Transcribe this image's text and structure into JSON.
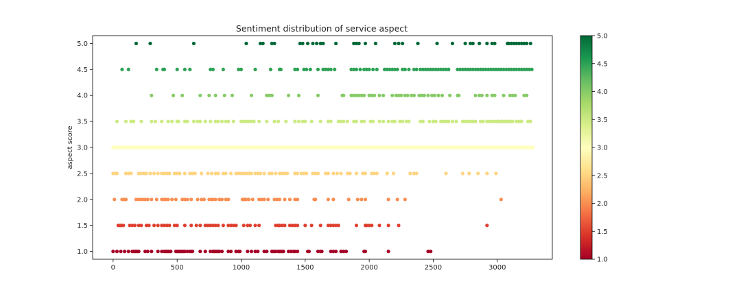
{
  "chart_data": {
    "type": "scatter",
    "title": "Sentiment distribution of service aspect",
    "xlabel": "",
    "ylabel": "aspect score",
    "xlim": [
      -160,
      3430
    ],
    "ylim": [
      0.85,
      5.15
    ],
    "xticks": [
      0,
      500,
      1000,
      1500,
      2000,
      2500,
      3000
    ],
    "xtick_labels": [
      "0",
      "500",
      "1000",
      "1500",
      "2000",
      "2500",
      "3000"
    ],
    "yticks": [
      1.0,
      1.5,
      2.0,
      2.5,
      3.0,
      3.5,
      4.0,
      4.5,
      5.0
    ],
    "ytick_labels": [
      "1.0",
      "1.5",
      "2.0",
      "2.5",
      "3.0",
      "3.5",
      "4.0",
      "4.5",
      "5.0"
    ],
    "grid": false,
    "colormap": "RdYlGn",
    "colormap_stops": [
      "#a50026",
      "#d73027",
      "#f46d43",
      "#fdae61",
      "#fee08b",
      "#ffffbf",
      "#d9ef8b",
      "#a6d96a",
      "#66bd63",
      "#1a9850",
      "#006837"
    ],
    "colorbar": {
      "range": [
        1.0,
        5.0
      ],
      "ticks": [
        1.0,
        1.5,
        2.0,
        2.5,
        3.0,
        3.5,
        4.0,
        4.5,
        5.0
      ],
      "tick_labels": [
        "1.0",
        "1.5",
        "2.0",
        "2.5",
        "3.0",
        "3.5",
        "4.0",
        "4.5",
        "5.0"
      ],
      "position": "right"
    },
    "series": [
      {
        "y": 1.0,
        "x": [
          0,
          30,
          60,
          90,
          120,
          150,
          160,
          170,
          180,
          190,
          200,
          250,
          270,
          300,
          350,
          380,
          400,
          410,
          420,
          430,
          440,
          450,
          490,
          500,
          510,
          520,
          530,
          540,
          550,
          560,
          580,
          600,
          610,
          620,
          680,
          720,
          760,
          780,
          790,
          800,
          810,
          820,
          830,
          850,
          900,
          920,
          960,
          980,
          990,
          1050,
          1080,
          1110,
          1130,
          1180,
          1200,
          1240,
          1250,
          1260,
          1270,
          1290,
          1300,
          1310,
          1320,
          1330,
          1370,
          1390,
          1410,
          1420,
          1440,
          1520,
          1530,
          1600,
          1620,
          1630,
          1700,
          1720,
          1740,
          1780,
          1800,
          1820,
          1960,
          1970,
          2150,
          2460,
          2480
        ]
      },
      {
        "y": 1.5,
        "x": [
          40,
          55,
          65,
          80,
          130,
          150,
          170,
          200,
          220,
          260,
          280,
          320,
          350,
          380,
          400,
          420,
          440,
          480,
          500,
          560,
          610,
          650,
          680,
          720,
          740,
          760,
          780,
          800,
          820,
          860,
          900,
          920,
          940,
          960,
          1020,
          1050,
          1070,
          1110,
          1140,
          1270,
          1290,
          1300,
          1320,
          1340,
          1380,
          1400,
          1420,
          1440,
          1500,
          1550,
          1620,
          1680,
          1700,
          1720,
          1740,
          1760,
          1900,
          1970,
          1980,
          2000,
          2020,
          2080,
          2150,
          2230,
          2920
        ]
      },
      {
        "y": 2.0,
        "x": [
          10,
          70,
          90,
          100,
          180,
          200,
          220,
          230,
          250,
          270,
          300,
          340,
          380,
          400,
          410,
          430,
          460,
          490,
          540,
          560,
          580,
          610,
          660,
          690,
          710,
          750,
          770,
          780,
          800,
          830,
          850,
          880,
          900,
          1010,
          1020,
          1030,
          1040,
          1060,
          1090,
          1140,
          1160,
          1180,
          1210,
          1260,
          1280,
          1300,
          1340,
          1380,
          1420,
          1440,
          1570,
          1580,
          1680,
          1720,
          1840,
          1910,
          1940,
          1970,
          2150,
          2220,
          2280,
          3030
        ]
      },
      {
        "y": 2.5,
        "x": [
          0,
          20,
          30,
          100,
          120,
          140,
          200,
          220,
          240,
          260,
          290,
          320,
          350,
          380,
          400,
          420,
          440,
          480,
          500,
          520,
          560,
          600,
          620,
          640,
          690,
          740,
          770,
          800,
          820,
          860,
          880,
          920,
          960,
          980,
          1000,
          1020,
          1040,
          1060,
          1080,
          1110,
          1130,
          1150,
          1180,
          1220,
          1240,
          1270,
          1300,
          1320,
          1340,
          1360,
          1420,
          1440,
          1470,
          1490,
          1510,
          1560,
          1580,
          1600,
          1660,
          1680,
          1720,
          1750,
          1780,
          1830,
          1850,
          1900,
          1950,
          1970,
          2020,
          2040,
          2060,
          2140,
          2190,
          2320,
          2350,
          2370,
          2600,
          2730,
          2780,
          2850,
          2920,
          2990
        ]
      },
      {
        "y": 3.0,
        "x": [
          0,
          10,
          20,
          30,
          40,
          50,
          60,
          70,
          80,
          90,
          100,
          110,
          120,
          130,
          140,
          150,
          160,
          170,
          180,
          190,
          200,
          210,
          220,
          230,
          240,
          250,
          260,
          270,
          280,
          290,
          300,
          310,
          320,
          330,
          340,
          350,
          360,
          370,
          380,
          390,
          400,
          410,
          420,
          430,
          440,
          450,
          460,
          470,
          480,
          490,
          500,
          510,
          520,
          530,
          540,
          550,
          560,
          570,
          580,
          590,
          600,
          610,
          620,
          630,
          640,
          650,
          660,
          670,
          680,
          690,
          700,
          710,
          720,
          730,
          740,
          750,
          760,
          770,
          780,
          790,
          800,
          810,
          820,
          830,
          840,
          850,
          860,
          870,
          880,
          890,
          900,
          910,
          920,
          930,
          940,
          950,
          960,
          970,
          980,
          990,
          1000,
          1010,
          1020,
          1030,
          1040,
          1050,
          1060,
          1070,
          1080,
          1090,
          1100,
          1110,
          1120,
          1130,
          1140,
          1150,
          1160,
          1170,
          1180,
          1190,
          1200,
          1210,
          1220,
          1230,
          1240,
          1250,
          1260,
          1270,
          1280,
          1290,
          1300,
          1310,
          1320,
          1330,
          1340,
          1350,
          1360,
          1370,
          1380,
          1390,
          1400,
          1410,
          1420,
          1430,
          1440,
          1450,
          1460,
          1470,
          1480,
          1490,
          1500,
          1510,
          1520,
          1530,
          1540,
          1550,
          1560,
          1570,
          1580,
          1590,
          1600,
          1610,
          1620,
          1630,
          1640,
          1650,
          1660,
          1670,
          1680,
          1690,
          1700,
          1710,
          1720,
          1730,
          1740,
          1750,
          1760,
          1770,
          1780,
          1790,
          1800,
          1810,
          1820,
          1830,
          1840,
          1850,
          1860,
          1870,
          1880,
          1890,
          1900,
          1910,
          1920,
          1930,
          1940,
          1950,
          1960,
          1970,
          1980,
          1990,
          2000,
          2010,
          2020,
          2030,
          2040,
          2050,
          2060,
          2070,
          2080,
          2090,
          2100,
          2110,
          2120,
          2130,
          2140,
          2150,
          2160,
          2170,
          2180,
          2190,
          2200,
          2210,
          2220,
          2230,
          2240,
          2250,
          2260,
          2270,
          2280,
          2290,
          2300,
          2310,
          2320,
          2330,
          2340,
          2350,
          2360,
          2370,
          2380,
          2390,
          2400,
          2410,
          2420,
          2430,
          2440,
          2450,
          2460,
          2470,
          2480,
          2490,
          2500,
          2510,
          2520,
          2530,
          2540,
          2550,
          2560,
          2570,
          2580,
          2590,
          2600,
          2610,
          2620,
          2630,
          2640,
          2650,
          2660,
          2670,
          2680,
          2690,
          2700,
          2710,
          2720,
          2730,
          2740,
          2750,
          2760,
          2770,
          2780,
          2790,
          2800,
          2810,
          2820,
          2830,
          2840,
          2850,
          2860,
          2870,
          2880,
          2890,
          2900,
          2910,
          2920,
          2930,
          2940,
          2950,
          2960,
          2970,
          2980,
          2990,
          3000,
          3010,
          3020,
          3030,
          3040,
          3050,
          3060,
          3070,
          3080,
          3090,
          3100,
          3110,
          3120,
          3130,
          3140,
          3150,
          3160,
          3170,
          3180,
          3190,
          3200,
          3210,
          3220,
          3230,
          3240,
          3250,
          3260,
          3270,
          3280
        ]
      },
      {
        "y": 3.5,
        "x": [
          30,
          100,
          140,
          160,
          220,
          300,
          330,
          380,
          430,
          460,
          500,
          510,
          560,
          580,
          630,
          660,
          680,
          720,
          760,
          800,
          820,
          850,
          880,
          900,
          940,
          1000,
          1020,
          1040,
          1060,
          1080,
          1100,
          1140,
          1200,
          1260,
          1290,
          1350,
          1420,
          1450,
          1480,
          1500,
          1550,
          1620,
          1680,
          1700,
          1760,
          1780,
          1800,
          1830,
          1880,
          1900,
          1940,
          1960,
          2010,
          2030,
          2080,
          2110,
          2150,
          2180,
          2200,
          2240,
          2260,
          2290,
          2310,
          2400,
          2420,
          2470,
          2500,
          2520,
          2560,
          2580,
          2600,
          2620,
          2650,
          2680,
          2730,
          2750,
          2770,
          2790,
          2810,
          2830,
          2870,
          2890,
          2920,
          2940,
          2960,
          2980,
          3000,
          3010,
          3030,
          3040,
          3060,
          3080,
          3090,
          3110,
          3120,
          3150,
          3170,
          3180,
          3190,
          3240,
          3260
        ]
      },
      {
        "y": 4.0,
        "x": [
          300,
          470,
          540,
          680,
          750,
          800,
          870,
          930,
          1080,
          1200,
          1220,
          1240,
          1370,
          1450,
          1600,
          1790,
          1800,
          1860,
          1880,
          1900,
          1920,
          1940,
          1960,
          2000,
          2020,
          2040,
          2080,
          2110,
          2180,
          2210,
          2230,
          2250,
          2280,
          2300,
          2330,
          2350,
          2390,
          2410,
          2430,
          2460,
          2490,
          2510,
          2540,
          2570,
          2630,
          2690,
          2700,
          2830,
          2860,
          2880,
          2920,
          2960,
          2980,
          3050,
          3100,
          3120,
          3140,
          3210,
          3230
        ]
      },
      {
        "y": 4.5,
        "x": [
          70,
          120,
          340,
          390,
          400,
          500,
          560,
          600,
          760,
          780,
          860,
          980,
          1000,
          1110,
          1230,
          1300,
          1310,
          1420,
          1440,
          1490,
          1510,
          1540,
          1600,
          1640,
          1660,
          1680,
          1700,
          1730,
          1860,
          1880,
          1900,
          1930,
          1960,
          1980,
          2000,
          2030,
          2060,
          2120,
          2140,
          2160,
          2180,
          2200,
          2220,
          2260,
          2280,
          2310,
          2350,
          2370,
          2400,
          2420,
          2440,
          2460,
          2480,
          2500,
          2520,
          2540,
          2560,
          2580,
          2600,
          2620,
          2690,
          2710,
          2730,
          2750,
          2770,
          2790,
          2810,
          2830,
          2850,
          2870,
          2890,
          2910,
          2930,
          2950,
          2970,
          2990,
          3010,
          3030,
          3050,
          3070,
          3090,
          3110,
          3130,
          3150,
          3170,
          3190,
          3210,
          3230,
          3250,
          3270
        ]
      },
      {
        "y": 5.0,
        "x": [
          180,
          290,
          630,
          1040,
          1150,
          1170,
          1240,
          1260,
          1460,
          1480,
          1520,
          1560,
          1590,
          1620,
          1640,
          1740,
          1880,
          1900,
          1920,
          1970,
          2050,
          2200,
          2230,
          2260,
          2380,
          2530,
          2650,
          2750,
          2790,
          2810,
          2860,
          2920,
          2960,
          2980,
          3080,
          3090,
          3110,
          3130,
          3150,
          3170,
          3190,
          3210,
          3230,
          3260
        ]
      }
    ]
  }
}
